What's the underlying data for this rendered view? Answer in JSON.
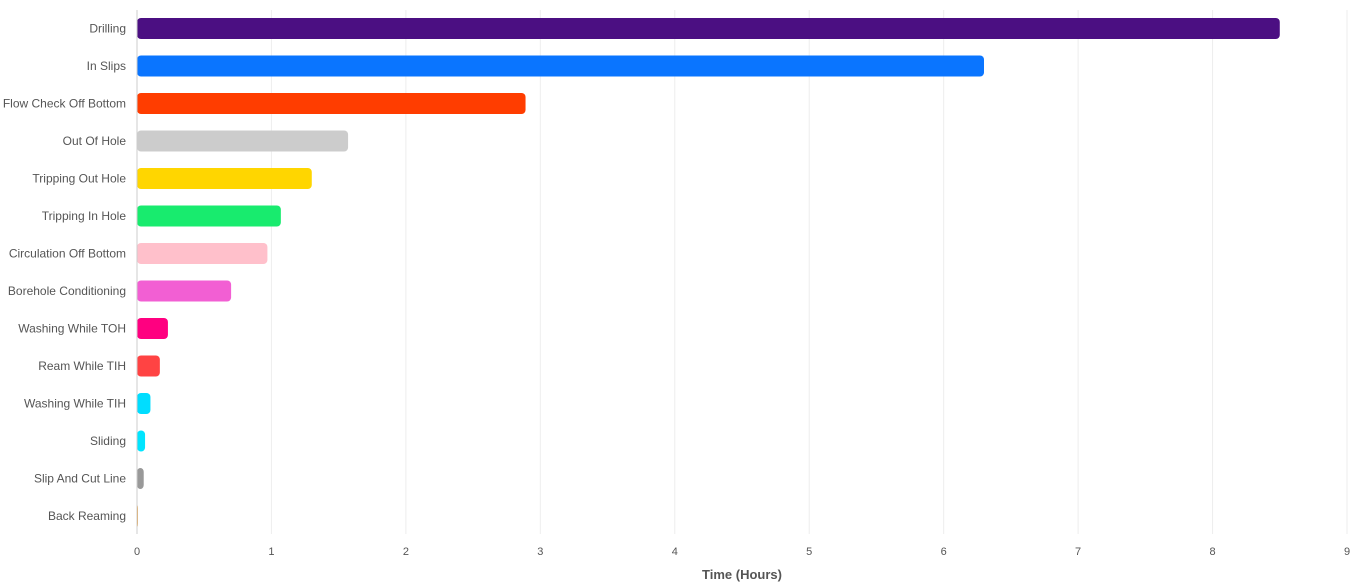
{
  "chart_data": {
    "type": "bar",
    "orientation": "horizontal",
    "title": "",
    "xlabel": "Time (Hours)",
    "ylabel": "",
    "xlim": [
      0,
      9
    ],
    "xticks": [
      "0",
      "1",
      "2",
      "3",
      "4",
      "5",
      "6",
      "7",
      "8",
      "9"
    ],
    "grid": true,
    "legend": "none",
    "categories": [
      "Drilling",
      "In Slips",
      "Flow Check Off Bottom",
      "Out Of Hole",
      "Tripping Out Hole",
      "Tripping In Hole",
      "Circulation Off Bottom",
      "Borehole Conditioning",
      "Washing While TOH",
      "Ream While TIH",
      "Washing While TIH",
      "Sliding",
      "Slip And Cut Line",
      "Back Reaming"
    ],
    "values": [
      8.5,
      6.3,
      2.89,
      1.57,
      1.3,
      1.07,
      0.97,
      0.7,
      0.23,
      0.17,
      0.1,
      0.06,
      0.05,
      0.005
    ],
    "colors": [
      "#4B0F82",
      "#0A75FF",
      "#FF3D00",
      "#CCCCCC",
      "#FFD600",
      "#18EB6E",
      "#FFC0CB",
      "#F25FD3",
      "#FF0080",
      "#FF4343",
      "#00DDFF",
      "#00E5FF",
      "#999999",
      "#E8A040"
    ]
  }
}
